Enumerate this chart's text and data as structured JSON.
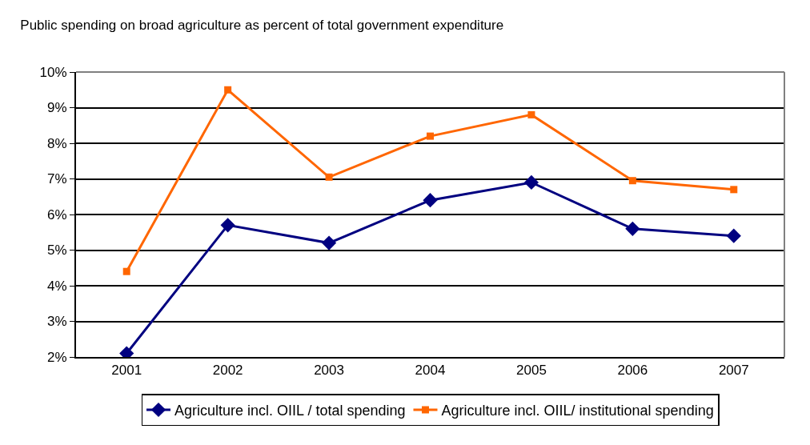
{
  "chart_data": {
    "type": "line",
    "title": "Public spending on broad agriculture as percent of total government expenditure",
    "categories": [
      "2001",
      "2002",
      "2003",
      "2004",
      "2005",
      "2006",
      "2007"
    ],
    "series": [
      {
        "name": "Agriculture incl. OIIL / total spending",
        "color": "#000080",
        "marker": "diamond",
        "values": [
          2.1,
          5.7,
          5.2,
          6.4,
          6.9,
          5.6,
          5.4
        ]
      },
      {
        "name": "Agriculture incl. OIIL/ institutional spending",
        "color": "#ff6600",
        "marker": "square",
        "values": [
          4.4,
          9.5,
          7.05,
          8.2,
          8.8,
          6.95,
          6.7
        ]
      }
    ],
    "ylim": [
      2,
      10
    ],
    "yticks": [
      {
        "value": 2,
        "label": "2%"
      },
      {
        "value": 3,
        "label": "3%"
      },
      {
        "value": 4,
        "label": "4%"
      },
      {
        "value": 5,
        "label": "5%"
      },
      {
        "value": 6,
        "label": "6%"
      },
      {
        "value": 7,
        "label": "7%"
      },
      {
        "value": 8,
        "label": "8%"
      },
      {
        "value": 9,
        "label": "9%"
      },
      {
        "value": 10,
        "label": "10%"
      }
    ],
    "grid": "y",
    "legend": "bottom",
    "line_style": "solid"
  }
}
